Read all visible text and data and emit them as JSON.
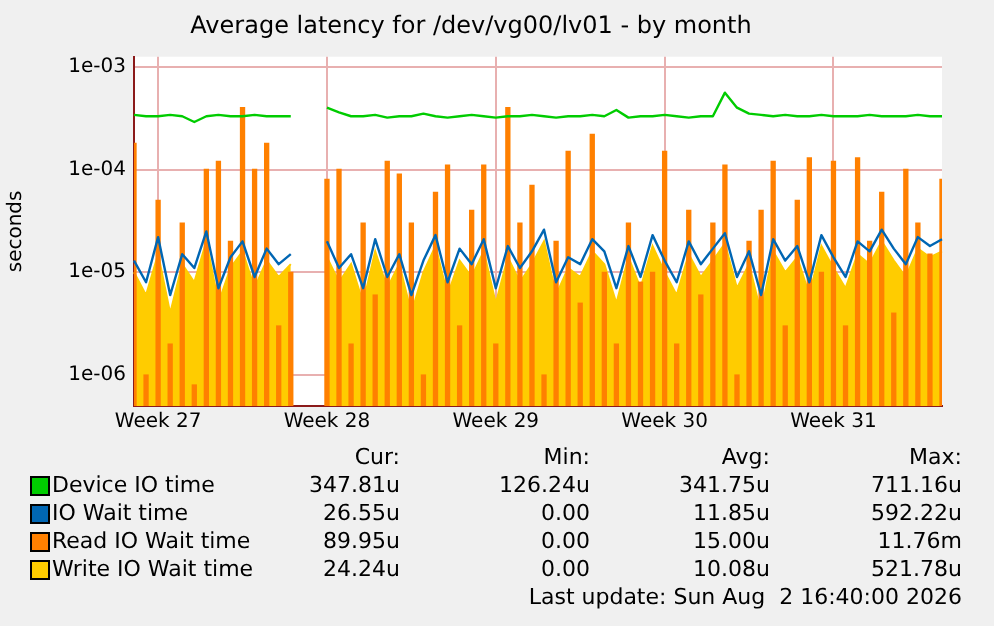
{
  "chart_data": {
    "type": "line",
    "title": "Average latency for /dev/vg00/lv01 - by month",
    "ylabel": "seconds",
    "log": true,
    "grid": true,
    "legend": "bottom",
    "ylim": [
      5e-07,
      0.00125
    ],
    "yticks": [
      {
        "value": 1e-06,
        "label": "1e-06"
      },
      {
        "value": 1e-05,
        "label": "1e-05"
      },
      {
        "value": 0.0001,
        "label": "1e-04"
      },
      {
        "value": 0.001,
        "label": "1e-03"
      }
    ],
    "categories": [
      null,
      null,
      "Week 27",
      null,
      null,
      null,
      null,
      null,
      null,
      null,
      null,
      null,
      null,
      null,
      null,
      null,
      "Week 28",
      null,
      null,
      null,
      null,
      null,
      null,
      null,
      null,
      null,
      null,
      null,
      null,
      null,
      "Week 29",
      null,
      null,
      null,
      null,
      null,
      null,
      null,
      null,
      null,
      null,
      null,
      null,
      null,
      "Week 30",
      null,
      null,
      null,
      null,
      null,
      null,
      null,
      null,
      null,
      null,
      null,
      null,
      null,
      "Week 31",
      null,
      null,
      null,
      null,
      null,
      null,
      null,
      null,
      null
    ],
    "series": [
      {
        "name": "Write IO Wait time",
        "type": "area",
        "color": "#ffcc00",
        "values": [
          1e-05,
          6e-06,
          1.5e-05,
          4e-06,
          1.2e-05,
          8e-06,
          2e-05,
          5e-06,
          1.1e-05,
          1.6e-05,
          7e-06,
          1.3e-05,
          9e-06,
          1.2e-05,
          null,
          null,
          1.4e-05,
          8e-06,
          1.2e-05,
          5e-06,
          1.6e-05,
          7e-06,
          1.2e-05,
          4e-06,
          1e-05,
          1.8e-05,
          6e-06,
          1.3e-05,
          9e-06,
          1.6e-05,
          5e-06,
          1.4e-05,
          8e-06,
          1.2e-05,
          2e-05,
          6e-06,
          1.1e-05,
          9e-06,
          1.6e-05,
          1.2e-05,
          5e-06,
          1.4e-05,
          7e-06,
          1.8e-05,
          1e-05,
          6e-06,
          1.5e-05,
          9e-06,
          1.3e-05,
          1.9e-05,
          7e-06,
          1.2e-05,
          4e-06,
          1.6e-05,
          1e-05,
          1.4e-05,
          6e-06,
          1.8e-05,
          1.1e-05,
          7e-06,
          1.5e-05,
          1.2e-05,
          2e-05,
          1.3e-05,
          9e-06,
          1.7e-05,
          1.4e-05,
          1.6e-05
        ]
      },
      {
        "name": "Read IO Wait time",
        "type": "bar",
        "color": "#ff8000",
        "values": [
          0.00018,
          1e-06,
          5e-05,
          2e-06,
          3e-05,
          8e-07,
          0.0001,
          0.00012,
          2e-05,
          0.0004,
          0.0001,
          0.00018,
          3e-06,
          1e-05,
          null,
          null,
          8e-05,
          0.0001,
          2e-06,
          3e-05,
          6e-06,
          0.00012,
          9e-05,
          3e-05,
          1e-06,
          6e-05,
          0.00011,
          3e-06,
          4e-05,
          0.00011,
          2e-06,
          0.0004,
          3e-05,
          7e-05,
          1e-06,
          2e-05,
          0.00015,
          5e-06,
          0.00022,
          1e-05,
          2e-06,
          3e-05,
          8e-06,
          1e-05,
          0.00015,
          2e-06,
          4e-05,
          6e-06,
          3e-05,
          0.00011,
          1e-06,
          2e-05,
          4e-05,
          0.00012,
          3e-06,
          5e-05,
          0.00013,
          1e-05,
          0.00012,
          3e-06,
          0.00013,
          2e-05,
          6e-05,
          4e-06,
          0.0001,
          3e-05,
          1.5e-05,
          8e-05
        ]
      },
      {
        "name": "IO Wait time",
        "color": "#0066b3",
        "values": [
          1.3e-05,
          8e-06,
          2.2e-05,
          6e-06,
          1.5e-05,
          1.1e-05,
          2.5e-05,
          7e-06,
          1.4e-05,
          2e-05,
          9e-06,
          1.7e-05,
          1.2e-05,
          1.5e-05,
          null,
          null,
          2e-05,
          1.1e-05,
          1.5e-05,
          7e-06,
          2.1e-05,
          9e-06,
          1.5e-05,
          6e-06,
          1.3e-05,
          2.3e-05,
          8e-06,
          1.7e-05,
          1.2e-05,
          2.1e-05,
          7e-06,
          1.8e-05,
          1.1e-05,
          1.6e-05,
          2.6e-05,
          8e-06,
          1.4e-05,
          1.2e-05,
          2.1e-05,
          1.6e-05,
          7e-06,
          1.8e-05,
          9e-06,
          2.3e-05,
          1.3e-05,
          8e-06,
          2e-05,
          1.2e-05,
          1.7e-05,
          2.4e-05,
          9e-06,
          1.6e-05,
          6e-06,
          2.1e-05,
          1.3e-05,
          1.8e-05,
          8e-06,
          2.3e-05,
          1.4e-05,
          9e-06,
          2e-05,
          1.6e-05,
          2.6e-05,
          1.7e-05,
          1.2e-05,
          2.2e-05,
          1.8e-05,
          2.1e-05
        ]
      },
      {
        "name": "Device IO time",
        "color": "#00cc00",
        "values": [
          0.00034,
          0.00033,
          0.00033,
          0.00034,
          0.00033,
          0.00029,
          0.00033,
          0.00034,
          0.00033,
          0.00033,
          0.00034,
          0.00033,
          0.00033,
          0.00033,
          null,
          null,
          0.0004,
          0.00036,
          0.00033,
          0.00033,
          0.00034,
          0.00032,
          0.00033,
          0.00033,
          0.00035,
          0.00033,
          0.00032,
          0.00033,
          0.00034,
          0.00033,
          0.00032,
          0.00033,
          0.00033,
          0.00034,
          0.00033,
          0.00032,
          0.00033,
          0.00033,
          0.00034,
          0.00033,
          0.00038,
          0.00032,
          0.00033,
          0.00033,
          0.00034,
          0.00033,
          0.00032,
          0.00033,
          0.00033,
          0.00056,
          0.0004,
          0.00035,
          0.00034,
          0.00033,
          0.00034,
          0.00033,
          0.00033,
          0.00034,
          0.00033,
          0.00033,
          0.00033,
          0.00034,
          0.00033,
          0.00033,
          0.00033,
          0.00034,
          0.00033,
          0.00033
        ]
      }
    ],
    "annotations": [
      "Cur:",
      "Min:",
      "Avg:",
      "Max:",
      "24.24u",
      "0.00",
      "10.08u",
      "521.78u",
      "89.95u",
      "0.00",
      "15.00u",
      "11.76m",
      "26.55u",
      "0.00",
      "11.85u",
      "592.22u",
      "347.81u",
      "126.24u",
      "341.75u",
      "711.16u",
      "Last update: Sun Aug  2 16:40:00 2026"
    ]
  }
}
